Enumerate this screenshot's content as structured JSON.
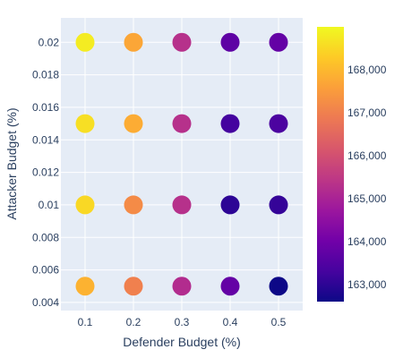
{
  "chart_data": {
    "type": "scatter",
    "xlabel": "Defender Budget (%)",
    "ylabel": "Attacker Budget (%)",
    "xlim": [
      0.05,
      0.55
    ],
    "ylim": [
      0.0035,
      0.0215
    ],
    "x_ticks": [
      "0.1",
      "0.2",
      "0.3",
      "0.4",
      "0.5"
    ],
    "x_tick_values": [
      0.1,
      0.2,
      0.3,
      0.4,
      0.5
    ],
    "y_ticks": [
      "0.004",
      "0.006",
      "0.008",
      "0.01",
      "0.012",
      "0.014",
      "0.016",
      "0.018",
      "0.02"
    ],
    "y_tick_values": [
      0.004,
      0.006,
      0.008,
      0.01,
      0.012,
      0.014,
      0.016,
      0.018,
      0.02
    ],
    "grid": true,
    "colorscale": "Plasma",
    "colorbar": {
      "min": 162600,
      "max": 169000,
      "tick_values": [
        163000,
        164000,
        165000,
        166000,
        167000,
        168000
      ],
      "tick_labels": [
        "163,000",
        "164,000",
        "165,000",
        "166,000",
        "167,000",
        "168,000"
      ]
    },
    "points": [
      {
        "x": 0.1,
        "y": 0.02,
        "value": 168800
      },
      {
        "x": 0.2,
        "y": 0.02,
        "value": 167700
      },
      {
        "x": 0.3,
        "y": 0.02,
        "value": 165300
      },
      {
        "x": 0.4,
        "y": 0.02,
        "value": 163700
      },
      {
        "x": 0.5,
        "y": 0.02,
        "value": 163800
      },
      {
        "x": 0.1,
        "y": 0.015,
        "value": 168600
      },
      {
        "x": 0.2,
        "y": 0.015,
        "value": 167800
      },
      {
        "x": 0.3,
        "y": 0.015,
        "value": 165300
      },
      {
        "x": 0.4,
        "y": 0.015,
        "value": 163300
      },
      {
        "x": 0.5,
        "y": 0.015,
        "value": 163400
      },
      {
        "x": 0.1,
        "y": 0.01,
        "value": 168500
      },
      {
        "x": 0.2,
        "y": 0.01,
        "value": 167200
      },
      {
        "x": 0.3,
        "y": 0.01,
        "value": 165300
      },
      {
        "x": 0.4,
        "y": 0.01,
        "value": 163000
      },
      {
        "x": 0.5,
        "y": 0.01,
        "value": 163100
      },
      {
        "x": 0.1,
        "y": 0.005,
        "value": 167900
      },
      {
        "x": 0.2,
        "y": 0.005,
        "value": 167000
      },
      {
        "x": 0.3,
        "y": 0.005,
        "value": 165200
      },
      {
        "x": 0.4,
        "y": 0.005,
        "value": 163800
      },
      {
        "x": 0.5,
        "y": 0.005,
        "value": 162600
      }
    ]
  }
}
